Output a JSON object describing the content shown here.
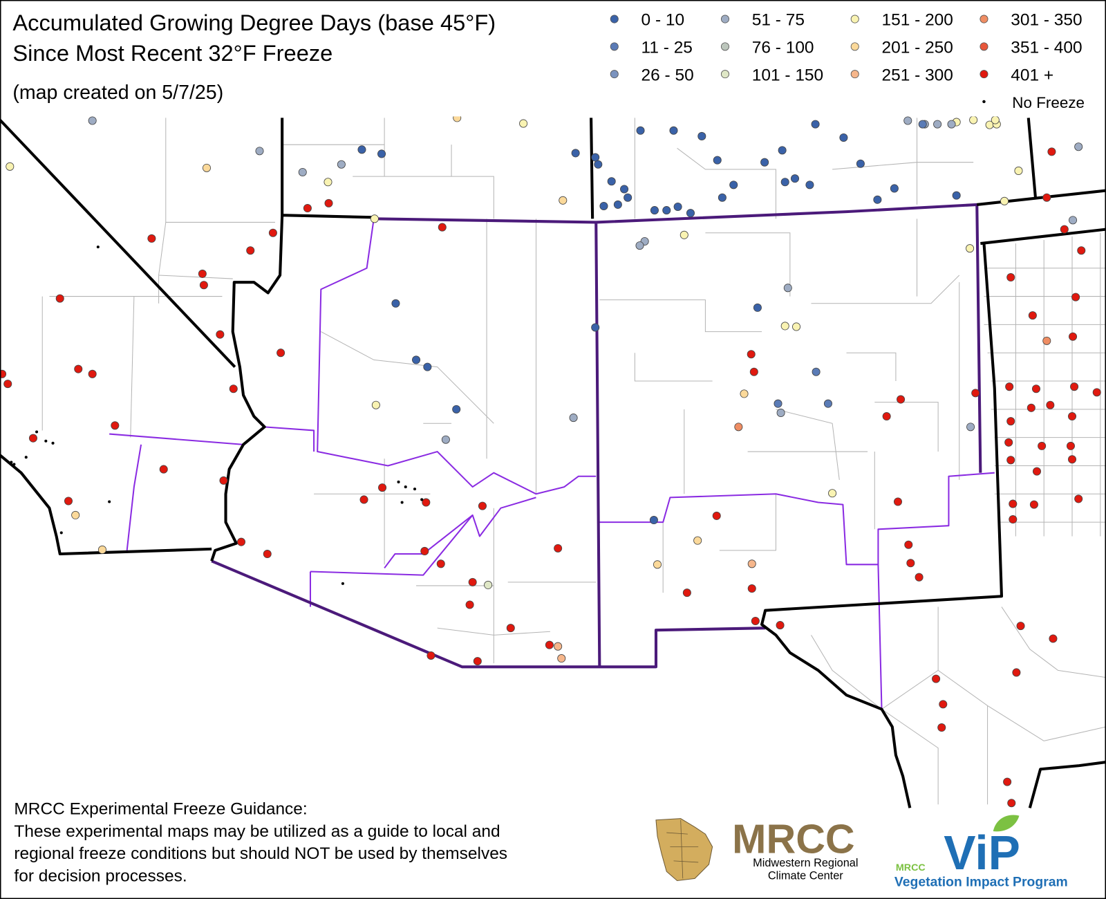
{
  "header": {
    "title_lines": [
      "Accumulated Growing Degree Days (base 45°F)",
      "Since Most Recent 32°F Freeze"
    ],
    "subtitle": "(map created on 5/7/25)"
  },
  "legend": {
    "items": [
      {
        "label": "0 - 10",
        "color": "#3a62a8"
      },
      {
        "label": "11 - 25",
        "color": "#5a7bb6"
      },
      {
        "label": "26 - 50",
        "color": "#7b93be"
      },
      {
        "label": "51 - 75",
        "color": "#9eacc3"
      },
      {
        "label": "76 - 100",
        "color": "#bcc6bc"
      },
      {
        "label": "101 - 150",
        "color": "#dfe7c6"
      },
      {
        "label": "151 - 200",
        "color": "#f9f3b2"
      },
      {
        "label": "201 - 250",
        "color": "#fbd99a"
      },
      {
        "label": "251 - 300",
        "color": "#f6b68b"
      },
      {
        "label": "301 - 350",
        "color": "#ef8d63"
      },
      {
        "label": "351 - 400",
        "color": "#e8573b"
      },
      {
        "label": "401 +",
        "color": "#e0190f"
      }
    ],
    "no_freeze": {
      "label": "No Freeze",
      "color": "#000000"
    }
  },
  "footer": {
    "heading": "MRCC Experimental Freeze Guidance:",
    "lines": [
      "These experimental maps may be utilized as a guide to local and",
      "regional freeze conditions but should NOT be used by themselves",
      "for decision processes."
    ]
  },
  "logos": {
    "mrcc": {
      "name": "MRCC",
      "subtitle_lines": [
        "Midwestern Regional",
        "Climate Center"
      ]
    },
    "vip": {
      "badge": "MRCC",
      "name": "ViP",
      "subtitle": "Vegetation Impact Program"
    }
  }
}
